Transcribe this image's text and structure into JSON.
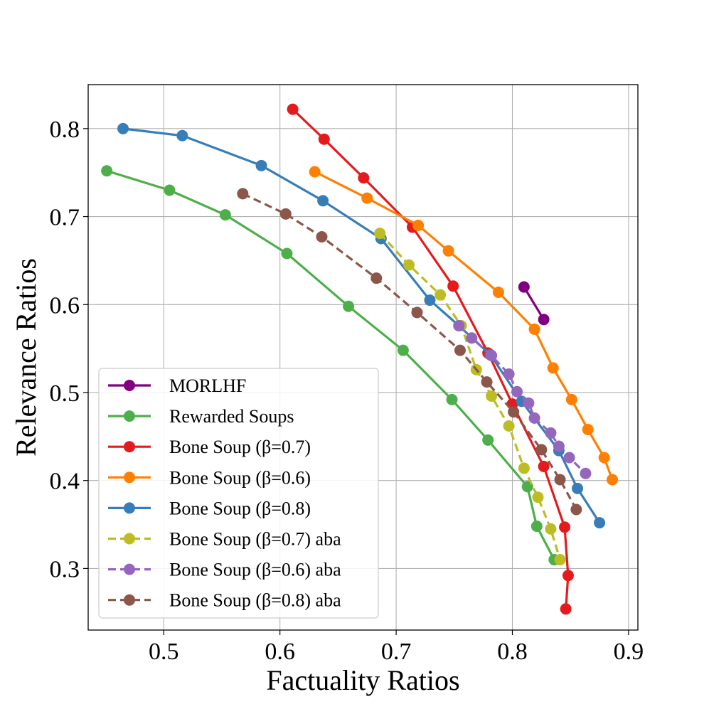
{
  "chart_data": {
    "type": "line",
    "title": "",
    "xlabel": "Factuality Ratios",
    "ylabel": "Relevance Ratios",
    "xlim": [
      0.435,
      0.908
    ],
    "ylim": [
      0.23,
      0.85
    ],
    "xticks": [
      0.5,
      0.6,
      0.7,
      0.8,
      0.9
    ],
    "yticks": [
      0.3,
      0.4,
      0.5,
      0.6,
      0.7,
      0.8
    ],
    "xtick_labels": [
      "0.5",
      "0.6",
      "0.7",
      "0.8",
      "0.9"
    ],
    "ytick_labels": [
      "0.3",
      "0.4",
      "0.5",
      "0.6",
      "0.7",
      "0.8"
    ],
    "grid": true,
    "legend_position": "lower-left",
    "series": [
      {
        "name": "MORLHF",
        "color": "#800080",
        "dashed": false,
        "x": [
          0.81,
          0.827
        ],
        "y": [
          0.62,
          0.583
        ]
      },
      {
        "name": "Rewarded Soups",
        "color": "#4daf4a",
        "dashed": false,
        "x": [
          0.451,
          0.505,
          0.553,
          0.606,
          0.659,
          0.706,
          0.748,
          0.779,
          0.813,
          0.821,
          0.836
        ],
        "y": [
          0.752,
          0.73,
          0.702,
          0.658,
          0.598,
          0.548,
          0.492,
          0.446,
          0.393,
          0.348,
          0.31
        ]
      },
      {
        "name": "Bone Soup (β=0.7)",
        "color": "#e41a1c",
        "dashed": false,
        "x": [
          0.611,
          0.638,
          0.672,
          0.714,
          0.749,
          0.779,
          0.8,
          0.827,
          0.845,
          0.848,
          0.846
        ],
        "y": [
          0.822,
          0.788,
          0.744,
          0.688,
          0.621,
          0.545,
          0.487,
          0.416,
          0.347,
          0.292,
          0.254
        ]
      },
      {
        "name": "Bone Soup (β=0.6)",
        "color": "#ff7f00",
        "dashed": false,
        "x": [
          0.63,
          0.675,
          0.719,
          0.745,
          0.788,
          0.819,
          0.835,
          0.851,
          0.865,
          0.879,
          0.886
        ],
        "y": [
          0.751,
          0.721,
          0.69,
          0.661,
          0.614,
          0.572,
          0.528,
          0.492,
          0.458,
          0.426,
          0.401
        ]
      },
      {
        "name": "Bone Soup (β=0.8)",
        "color": "#377eb8",
        "dashed": false,
        "x": [
          0.465,
          0.516,
          0.584,
          0.637,
          0.687,
          0.729,
          0.754,
          0.781,
          0.808,
          0.84,
          0.856,
          0.875
        ],
        "y": [
          0.8,
          0.792,
          0.758,
          0.718,
          0.675,
          0.605,
          0.576,
          0.543,
          0.49,
          0.434,
          0.391,
          0.352
        ]
      },
      {
        "name": "Bone Soup (β=0.7) aba",
        "color": "#bcbd22",
        "dashed": true,
        "x": [
          0.686,
          0.711,
          0.738,
          0.756,
          0.769,
          0.782,
          0.797,
          0.81,
          0.822,
          0.833,
          0.841
        ],
        "y": [
          0.681,
          0.645,
          0.611,
          0.576,
          0.526,
          0.496,
          0.462,
          0.414,
          0.381,
          0.345,
          0.31
        ]
      },
      {
        "name": "Bone Soup (β=0.6) aba",
        "color": "#9467bd",
        "dashed": true,
        "x": [
          0.754,
          0.765,
          0.782,
          0.797,
          0.804,
          0.814,
          0.819,
          0.833,
          0.84,
          0.849,
          0.863
        ],
        "y": [
          0.576,
          0.562,
          0.542,
          0.521,
          0.501,
          0.488,
          0.471,
          0.454,
          0.439,
          0.426,
          0.408
        ]
      },
      {
        "name": "Bone Soup (β=0.8) aba",
        "color": "#8c564b",
        "dashed": true,
        "x": [
          0.568,
          0.605,
          0.636,
          0.683,
          0.718,
          0.755,
          0.778,
          0.801,
          0.825,
          0.841,
          0.855
        ],
        "y": [
          0.726,
          0.703,
          0.677,
          0.63,
          0.591,
          0.548,
          0.512,
          0.478,
          0.435,
          0.401,
          0.367
        ]
      }
    ]
  }
}
